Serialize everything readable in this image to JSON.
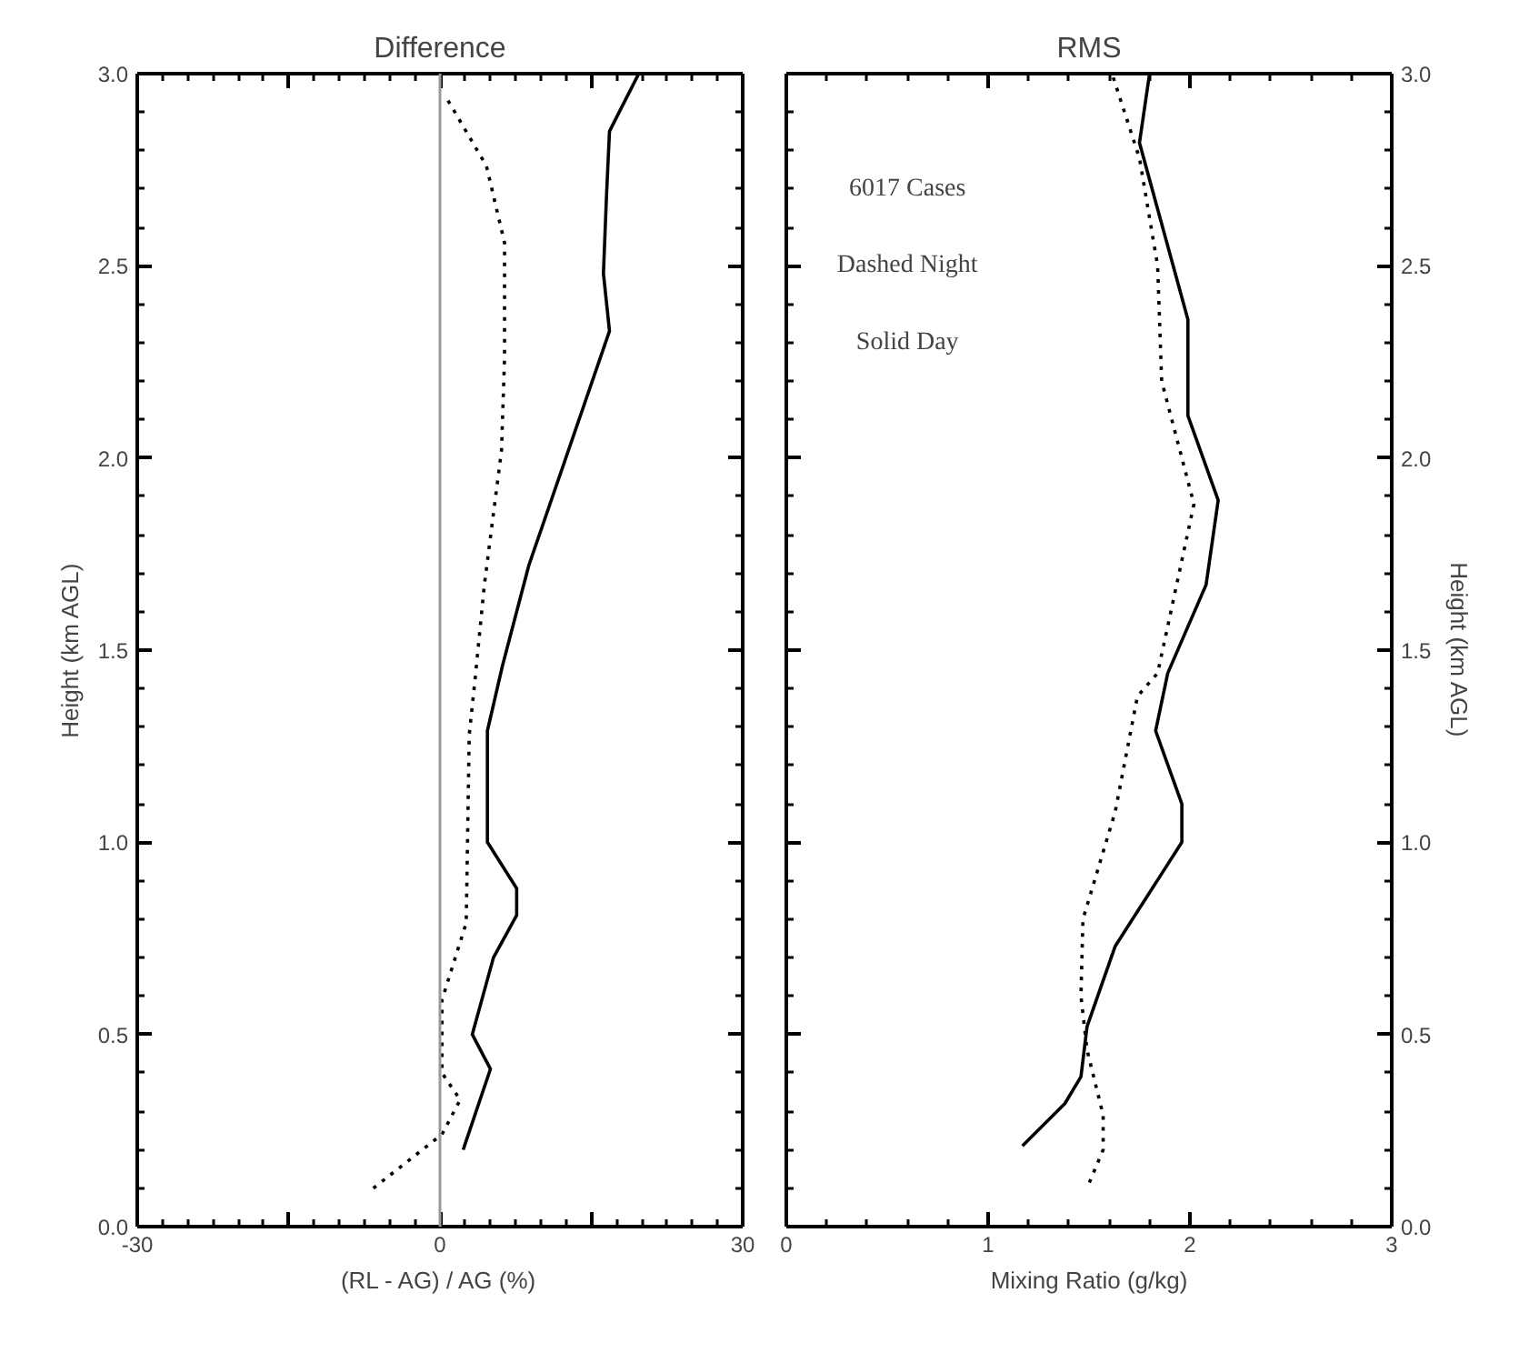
{
  "chart_data": [
    {
      "type": "line",
      "title": "Difference",
      "xlabel": "(RL - AG) / AG (%)",
      "ylabel": "Height (km AGL)",
      "xlim": [
        -30,
        30
      ],
      "xticks": [
        -30,
        {
          "value": -15,
          "label": null
        },
        0,
        {
          "value": 15,
          "label": null
        },
        30
      ],
      "ylim": [
        0,
        3
      ],
      "yticks": [
        {
          "value": 0,
          "label": "0.0"
        },
        {
          "value": 0.5,
          "label": "0.5"
        },
        {
          "value": 1,
          "label": "1.0"
        },
        {
          "value": 1.5,
          "label": "1.5"
        },
        {
          "value": 2,
          "label": "2.0"
        },
        {
          "value": 2.5,
          "label": "2.5"
        },
        {
          "value": 3,
          "label": "3.0"
        }
      ],
      "grid": false,
      "marker": "none",
      "ref_lines": [
        {
          "axis": "x",
          "value": 0,
          "color": "#999999"
        }
      ],
      "series": [
        {
          "color": "#000000",
          "line_style": "solid",
          "x": [
            19.7,
            16.8,
            16.5,
            16.2,
            16.8,
            8.8,
            6.2,
            4.7,
            4.7,
            7.6,
            7.6,
            5.3,
            3.2,
            5.0,
            2.3
          ],
          "values": [
            3.0,
            2.85,
            2.68,
            2.48,
            2.33,
            1.72,
            1.46,
            1.29,
            1.0,
            0.88,
            0.81,
            0.7,
            0.5,
            0.41,
            0.2
          ]
        },
        {
          "color": "#000000",
          "line_style": "dotted",
          "x": [
            0.8,
            4.6,
            6.4,
            6.4,
            6.1,
            4.4,
            3.5,
            2.9,
            2.6,
            0.2,
            0.2,
            2.0,
            0.2,
            -6.6
          ],
          "values": [
            2.93,
            2.76,
            2.56,
            2.26,
            2.02,
            1.67,
            1.43,
            1.28,
            0.79,
            0.59,
            0.4,
            0.33,
            0.24,
            0.1
          ]
        }
      ]
    },
    {
      "type": "line",
      "title": "RMS",
      "xlabel": "Mixing Ratio (g/kg)",
      "ylabel": "Height (km AGL)",
      "xlim": [
        0,
        3
      ],
      "xticks": [
        0,
        1,
        2,
        3
      ],
      "ylim": [
        0,
        3
      ],
      "yticks": [
        {
          "value": 0,
          "label": "0.0"
        },
        {
          "value": 0.5,
          "label": "0.5"
        },
        {
          "value": 1,
          "label": "1.0"
        },
        {
          "value": 1.5,
          "label": "1.5"
        },
        {
          "value": 2,
          "label": "2.0"
        },
        {
          "value": 2.5,
          "label": "2.5"
        },
        {
          "value": 3,
          "label": "3.0"
        }
      ],
      "grid": false,
      "marker": "none",
      "annotations": [
        "6017 Cases",
        "Dashed Night",
        "Solid Day"
      ],
      "series": [
        {
          "color": "#000000",
          "line_style": "solid",
          "x": [
            1.8,
            1.75,
            1.99,
            1.99,
            2.14,
            2.08,
            1.89,
            1.83,
            1.96,
            1.96,
            1.63,
            1.49,
            1.46,
            1.38,
            1.17
          ],
          "values": [
            3.0,
            2.82,
            2.36,
            2.11,
            1.89,
            1.67,
            1.44,
            1.29,
            1.1,
            1.0,
            0.73,
            0.52,
            0.39,
            0.32,
            0.21
          ]
        },
        {
          "color": "#000000",
          "line_style": "dotted",
          "x": [
            1.62,
            1.75,
            1.84,
            1.86,
            2.02,
            1.84,
            1.74,
            1.63,
            1.47,
            1.46,
            1.49,
            1.57,
            1.57,
            1.49
          ],
          "values": [
            2.99,
            2.78,
            2.5,
            2.2,
            1.88,
            1.44,
            1.38,
            1.08,
            0.8,
            0.6,
            0.46,
            0.29,
            0.2,
            0.1
          ]
        }
      ]
    }
  ]
}
